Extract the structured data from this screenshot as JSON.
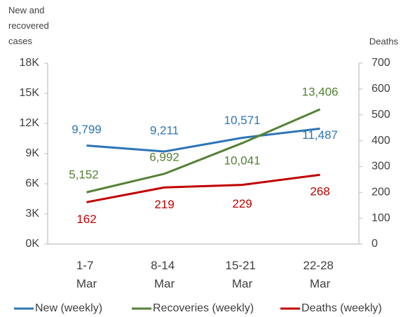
{
  "chart_data": {
    "type": "line",
    "y_axis_label": "New and recovered cases",
    "y2_axis_label": "Deaths",
    "categories": [
      "1-7 Mar",
      "8-14 Mar",
      "15-21 Mar",
      "22-28 Mar"
    ],
    "ylim": [
      0,
      18000
    ],
    "yticks": [
      {
        "value": 0,
        "label": "0K"
      },
      {
        "value": 3000,
        "label": "3K"
      },
      {
        "value": 6000,
        "label": "6K"
      },
      {
        "value": 9000,
        "label": "9K"
      },
      {
        "value": 12000,
        "label": "12K"
      },
      {
        "value": 15000,
        "label": "15K"
      },
      {
        "value": 18000,
        "label": "18K"
      }
    ],
    "y2lim": [
      0,
      700
    ],
    "y2ticks": [
      0,
      100,
      200,
      300,
      400,
      500,
      600,
      700
    ],
    "legend": "bottom",
    "series": [
      {
        "name": "New (weekly)",
        "color": "#2e75b6",
        "values": [
          9799,
          9211,
          10571,
          11487
        ],
        "value_labels": [
          "9,799",
          "9,211",
          "10,571",
          "11,487"
        ]
      },
      {
        "name": "Recoveries (weekly)",
        "color": "#548235",
        "values": [
          5152,
          6992,
          10041,
          13406
        ],
        "value_labels": [
          "5,152",
          "6,992",
          "10,041",
          "13,406"
        ]
      },
      {
        "name": "Deaths (weekly)",
        "color": "#c00000",
        "axis": "y2",
        "values": [
          162,
          219,
          229,
          268
        ]
      }
    ]
  }
}
